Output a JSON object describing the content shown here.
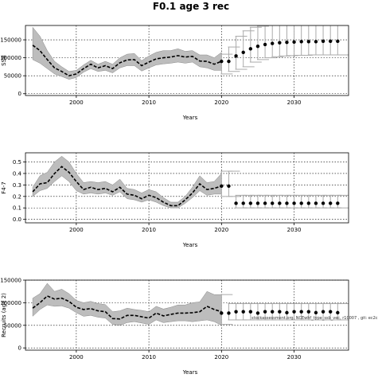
{
  "title": "F0.1 age 3 rec",
  "watermark": "stockassessment.org, NCEwhf_type_ssb_vec, r10007 , git: ec2c",
  "colors": {
    "band": "#bdbdbd",
    "line": "#000000",
    "whisker": "#aaaaaa",
    "point": "#000000"
  },
  "chart_data": [
    {
      "type": "line",
      "ylabel": "SSB",
      "xlabel": "Years",
      "xlim": [
        1993,
        2037.5
      ],
      "ylim": [
        -5000,
        190000
      ],
      "xticks": [
        2000,
        2010,
        2020,
        2030
      ],
      "yticks": [
        0,
        50000,
        100000,
        150000
      ],
      "yticklabels": [
        "0",
        "50000",
        "100000",
        "150000"
      ],
      "grid": true,
      "series": [
        {
          "kind": "band",
          "x": [
            1994,
            1995,
            1996,
            1997,
            1998,
            1999,
            2000,
            2001,
            2002,
            2003,
            2004,
            2005,
            2006,
            2007,
            2008,
            2009,
            2010,
            2011,
            2012,
            2013,
            2014,
            2015,
            2016,
            2017,
            2018,
            2019,
            2020
          ],
          "lower": [
            95000,
            85000,
            70000,
            55000,
            48000,
            40000,
            45000,
            60000,
            70000,
            62000,
            65000,
            58000,
            72000,
            78000,
            78000,
            63000,
            72000,
            80000,
            83000,
            85000,
            88000,
            85000,
            88000,
            75000,
            72000,
            65000,
            65000
          ],
          "upper": [
            185000,
            160000,
            120000,
            90000,
            75000,
            62000,
            65000,
            80000,
            93000,
            82000,
            90000,
            82000,
            100000,
            110000,
            112000,
            92000,
            105000,
            115000,
            120000,
            120000,
            125000,
            118000,
            120000,
            108000,
            108000,
            100000,
            115000
          ]
        },
        {
          "kind": "line",
          "x": [
            1994,
            1995,
            1996,
            1997,
            1998,
            1999,
            2000,
            2001,
            2002,
            2003,
            2004,
            2005,
            2006,
            2007,
            2008,
            2009,
            2010,
            2011,
            2012,
            2013,
            2014,
            2015,
            2016,
            2017,
            2018,
            2019,
            2020
          ],
          "y": [
            135000,
            120000,
            95000,
            72000,
            62000,
            50000,
            55000,
            70000,
            82000,
            72000,
            78000,
            70000,
            86000,
            94000,
            95000,
            78000,
            88000,
            97000,
            100000,
            102000,
            106000,
            102000,
            104000,
            91000,
            90000,
            82000,
            90000
          ]
        },
        {
          "kind": "points_whiskers",
          "x": [
            2020,
            2021,
            2022,
            2023,
            2024,
            2025,
            2026,
            2027,
            2028,
            2029,
            2030,
            2031,
            2032,
            2033,
            2034,
            2035,
            2036
          ],
          "y": [
            90000,
            90000,
            105000,
            115000,
            125000,
            132000,
            137000,
            140000,
            142000,
            143000,
            144000,
            145000,
            145000,
            145000,
            146000,
            146000,
            146000
          ],
          "lower": [
            55000,
            62000,
            68000,
            75000,
            88000,
            95000,
            100000,
            103000,
            105000,
            106000,
            107000,
            107000,
            108000,
            108000,
            108000,
            108000,
            108000
          ],
          "upper": [
            110000,
            130000,
            160000,
            175000,
            185000,
            188000,
            190000,
            190000,
            190000,
            190000,
            190000,
            190000,
            190000,
            190000,
            190000,
            190000,
            190000
          ]
        }
      ]
    },
    {
      "type": "line",
      "ylabel": "F4-7",
      "xlabel": "Years",
      "xlim": [
        1993,
        2037.5
      ],
      "ylim": [
        -0.03,
        0.58
      ],
      "xticks": [
        2000,
        2010,
        2020,
        2030
      ],
      "yticks": [
        0,
        0.1,
        0.2,
        0.3,
        0.4,
        0.5
      ],
      "yticklabels": [
        "0.0",
        "0.1",
        "0.2",
        "0.3",
        "0.4",
        "0.5"
      ],
      "grid": true,
      "series": [
        {
          "kind": "band",
          "x": [
            1994,
            1995,
            1996,
            1997,
            1998,
            1999,
            2000,
            2001,
            2002,
            2003,
            2004,
            2005,
            2006,
            2007,
            2008,
            2009,
            2010,
            2011,
            2012,
            2013,
            2014,
            2015,
            2016,
            2017,
            2018,
            2019,
            2020
          ],
          "lower": [
            0.2,
            0.25,
            0.27,
            0.33,
            0.38,
            0.33,
            0.25,
            0.22,
            0.23,
            0.22,
            0.23,
            0.21,
            0.24,
            0.18,
            0.17,
            0.15,
            0.17,
            0.15,
            0.12,
            0.1,
            0.1,
            0.14,
            0.19,
            0.25,
            0.21,
            0.22,
            0.22
          ],
          "upper": [
            0.28,
            0.38,
            0.41,
            0.5,
            0.55,
            0.5,
            0.4,
            0.32,
            0.33,
            0.32,
            0.33,
            0.3,
            0.35,
            0.27,
            0.26,
            0.23,
            0.26,
            0.24,
            0.19,
            0.15,
            0.15,
            0.2,
            0.28,
            0.38,
            0.32,
            0.33,
            0.4
          ]
        },
        {
          "kind": "line",
          "x": [
            1994,
            1995,
            1996,
            1997,
            1998,
            1999,
            2000,
            2001,
            2002,
            2003,
            2004,
            2005,
            2006,
            2007,
            2008,
            2009,
            2010,
            2011,
            2012,
            2013,
            2014,
            2015,
            2016,
            2017,
            2018,
            2019,
            2020
          ],
          "y": [
            0.24,
            0.31,
            0.32,
            0.4,
            0.46,
            0.41,
            0.33,
            0.26,
            0.28,
            0.26,
            0.27,
            0.24,
            0.28,
            0.22,
            0.21,
            0.18,
            0.21,
            0.19,
            0.15,
            0.12,
            0.12,
            0.17,
            0.23,
            0.31,
            0.26,
            0.27,
            0.29
          ]
        },
        {
          "kind": "points_whiskers",
          "x": [
            2020,
            2021,
            2022,
            2023,
            2024,
            2025,
            2026,
            2027,
            2028,
            2029,
            2030,
            2031,
            2032,
            2033,
            2034,
            2035,
            2036
          ],
          "y": [
            0.29,
            0.29,
            0.14,
            0.14,
            0.14,
            0.14,
            0.14,
            0.14,
            0.14,
            0.14,
            0.14,
            0.14,
            0.14,
            0.14,
            0.14,
            0.14,
            0.14
          ],
          "lower": [
            0.2,
            0.2,
            0.1,
            0.1,
            0.1,
            0.1,
            0.1,
            0.1,
            0.1,
            0.1,
            0.1,
            0.1,
            0.1,
            0.1,
            0.1,
            0.1,
            0.1
          ],
          "upper": [
            0.42,
            0.42,
            0.21,
            0.21,
            0.21,
            0.21,
            0.21,
            0.21,
            0.21,
            0.21,
            0.21,
            0.21,
            0.21,
            0.21,
            0.21,
            0.21,
            0.21
          ]
        }
      ]
    },
    {
      "type": "line",
      "ylabel": "Recruits (age 2)",
      "xlabel": "Years",
      "xlim": [
        1993,
        2037.5
      ],
      "ylim": [
        -5000,
        150000
      ],
      "xticks": [
        2000,
        2010,
        2020,
        2030
      ],
      "yticks": [
        0,
        50000,
        100000,
        150000
      ],
      "yticklabels": [
        "0",
        "50000",
        "100000",
        "150000"
      ],
      "grid": true,
      "series": [
        {
          "kind": "band",
          "x": [
            1994,
            1995,
            1996,
            1997,
            1998,
            1999,
            2000,
            2001,
            2002,
            2003,
            2004,
            2005,
            2006,
            2007,
            2008,
            2009,
            2010,
            2011,
            2012,
            2013,
            2014,
            2015,
            2016,
            2017,
            2018,
            2019,
            2020
          ],
          "lower": [
            70000,
            85000,
            95000,
            92000,
            93000,
            88000,
            78000,
            70000,
            72000,
            68000,
            66000,
            52000,
            50000,
            56000,
            58000,
            55000,
            52000,
            62000,
            56000,
            58000,
            60000,
            60000,
            58000,
            60000,
            62000,
            58000,
            50000
          ],
          "upper": [
            110000,
            120000,
            143000,
            125000,
            130000,
            120000,
            105000,
            100000,
            103000,
            98000,
            96000,
            80000,
            82000,
            88000,
            85000,
            83000,
            80000,
            92000,
            86000,
            90000,
            95000,
            95000,
            100000,
            102000,
            125000,
            118000,
            118000
          ]
        },
        {
          "kind": "line",
          "x": [
            1994,
            1995,
            1996,
            1997,
            1998,
            1999,
            2000,
            2001,
            2002,
            2003,
            2004,
            2005,
            2006,
            2007,
            2008,
            2009,
            2010,
            2011,
            2012,
            2013,
            2014,
            2015,
            2016,
            2017,
            2018,
            2019,
            2020
          ],
          "y": [
            88000,
            100000,
            115000,
            108000,
            110000,
            103000,
            90000,
            85000,
            87000,
            82000,
            80000,
            65000,
            64000,
            72000,
            72000,
            69000,
            66000,
            77000,
            71000,
            74000,
            77000,
            77000,
            78000,
            80000,
            92000,
            85000,
            80000
          ],
          "ylim_clip": true
        },
        {
          "kind": "points_whiskers",
          "x": [
            2020,
            2021,
            2022,
            2023,
            2024,
            2025,
            2026,
            2027,
            2028,
            2029,
            2030,
            2031,
            2032,
            2033,
            2034,
            2035,
            2036
          ],
          "y": [
            77000,
            77000,
            80000,
            80000,
            80000,
            77000,
            80000,
            80000,
            80000,
            78000,
            80000,
            80000,
            80000,
            78000,
            80000,
            80000,
            78000
          ],
          "lower": [
            52000,
            62000,
            62000,
            62000,
            62000,
            62000,
            62000,
            62000,
            62000,
            62000,
            62000,
            62000,
            62000,
            62000,
            62000,
            62000,
            62000
          ],
          "upper": [
            118000,
            98000,
            98000,
            98000,
            98000,
            98000,
            98000,
            98000,
            98000,
            98000,
            98000,
            98000,
            98000,
            98000,
            98000,
            98000,
            98000
          ]
        }
      ]
    }
  ]
}
